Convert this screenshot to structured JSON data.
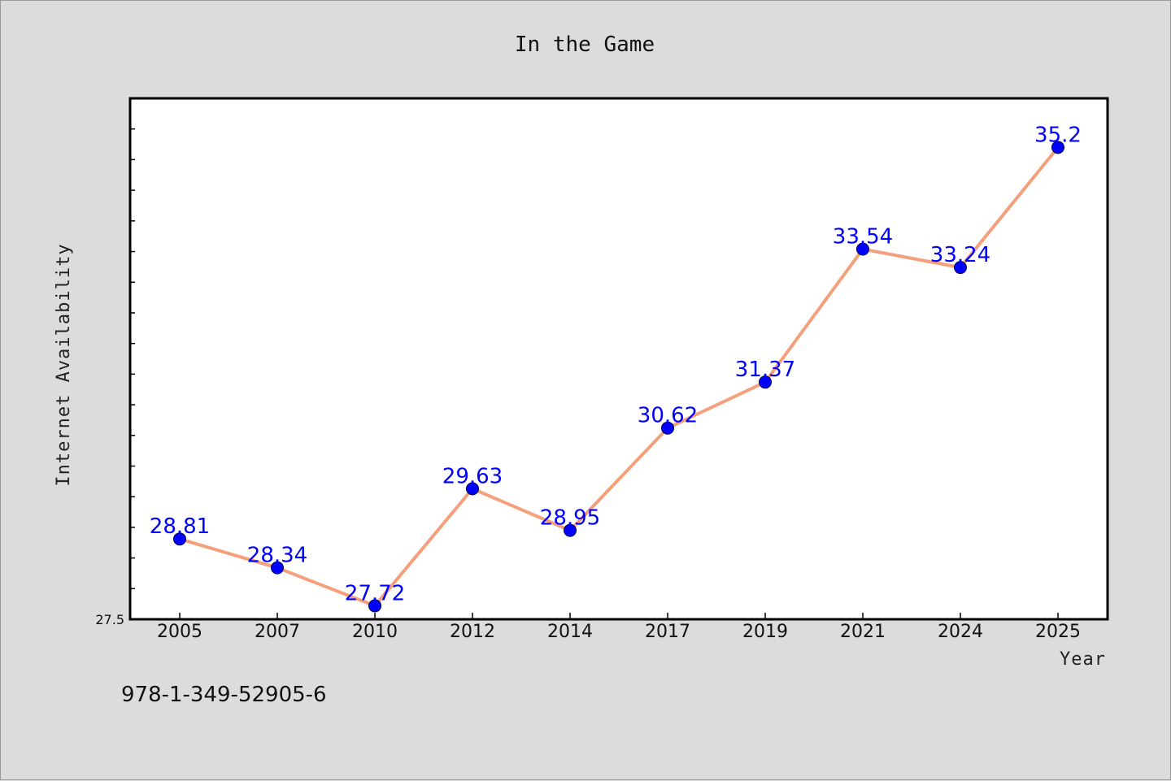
{
  "chart_data": {
    "type": "line",
    "title": "In the Game",
    "xlabel": "Year",
    "ylabel": "Internet Availability",
    "categories": [
      "2005",
      "2007",
      "2010",
      "2012",
      "2014",
      "2017",
      "2019",
      "2021",
      "2024",
      "2025"
    ],
    "series": [
      {
        "values": [
          28.81,
          28.34,
          27.72,
          29.63,
          28.95,
          30.62,
          31.37,
          33.54,
          33.24,
          35.2
        ],
        "labels": [
          "28.81",
          "28.34",
          "27.72",
          "29.63",
          "28.95",
          "30.62",
          "31.37",
          "33.54",
          "33.24",
          "35.2"
        ],
        "line_color": "#f4a07c",
        "marker_color": "#0000ff"
      }
    ],
    "ylim": [
      27.5,
      36
    ],
    "y_tick_label": "27.5",
    "grid": false,
    "legend": "none"
  },
  "footnote": "978-1-349-52905-6"
}
